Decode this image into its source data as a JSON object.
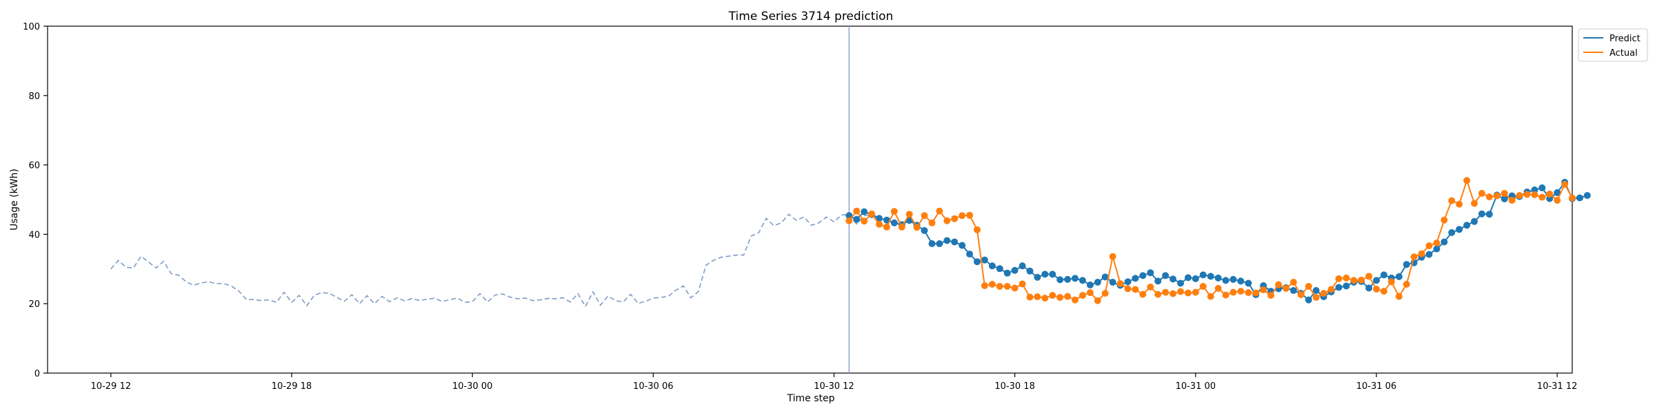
{
  "chart_data": {
    "type": "line",
    "title": "Time Series 3714 prediction",
    "xlabel": "Time step",
    "ylabel": "Usage (kWh)",
    "ylim": [
      0,
      100
    ],
    "yticks": [
      0,
      20,
      40,
      60,
      80,
      100
    ],
    "xticks": [
      "10-29 12",
      "10-29 18",
      "10-30 00",
      "10-30 06",
      "10-30 12",
      "10-30 18",
      "10-31 00",
      "10-31 06",
      "10-31 12"
    ],
    "xlim": [
      -2.1,
      48.5
    ],
    "grid": false,
    "legend_position": "outside-top-right",
    "prediction_start": 24.5,
    "colors": {
      "history": "#7e9cc4",
      "predict": "#1f77b4",
      "actual": "#ff7f0e",
      "divider": "#8c9fd1"
    },
    "history": {
      "x_start": 0,
      "x_step": 0.25,
      "values": [
        30,
        32.5,
        30.5,
        30.3,
        33.7,
        32,
        30.3,
        32.2,
        28.7,
        28.2,
        26.3,
        25.3,
        26,
        26.3,
        25.8,
        25.8,
        25.1,
        23.6,
        21.2,
        21.2,
        20.9,
        21.1,
        20.4,
        23.3,
        20.4,
        22.4,
        19.4,
        22.4,
        23.2,
        23,
        21.8,
        20.7,
        22.6,
        20,
        22.3,
        20,
        22.1,
        20.6,
        21.7,
        20.8,
        21.5,
        20.9,
        21.3,
        21.6,
        20.6,
        21.2,
        21.6,
        20.4,
        20.6,
        22.9,
        20.5,
        22.5,
        22.8,
        21.9,
        21.4,
        21.6,
        20.9,
        21.1,
        21.5,
        21.4,
        21.7,
        20.5,
        22.9,
        19.2,
        23.4,
        19.6,
        22.2,
        20.9,
        20.5,
        22.7,
        20.1,
        20.7,
        21.6,
        21.8,
        22.1,
        23.9,
        25.1,
        21.7,
        23.5,
        31.1,
        32.5,
        33.4,
        33.7,
        34,
        34,
        39.5,
        40.4,
        44.6,
        42.5,
        43.3,
        45.8,
        44,
        45,
        42.6,
        43.3,
        45,
        43.6,
        45.6,
        45.6,
        43,
        45.3,
        45.8,
        44.2
      ]
    },
    "series": [
      {
        "name": "Predict",
        "x_start": 24.5,
        "x_step": 0.25,
        "values": [
          45.4,
          44.3,
          46.5,
          45.7,
          44.6,
          44.1,
          43.3,
          42.8,
          44,
          42.6,
          41.1,
          37.3,
          37.3,
          38.2,
          37.8,
          36.8,
          34.3,
          32.1,
          32.6,
          30.9,
          30.1,
          28.8,
          29.6,
          30.9,
          29.4,
          27.6,
          28.5,
          28.5,
          26.9,
          27,
          27.3,
          26.7,
          25.4,
          26.2,
          27.7,
          26.2,
          25.3,
          26.3,
          27.3,
          28.1,
          28.9,
          26.5,
          28.1,
          27.1,
          25.9,
          27.5,
          27.2,
          28.3,
          27.9,
          27.4,
          26.7,
          27,
          26.5,
          25.9,
          22.6,
          25.2,
          23.6,
          24.3,
          24.6,
          23.8,
          23,
          21.1,
          23.8,
          22,
          23.4,
          24.7,
          25.1,
          26.2,
          26.4,
          24.5,
          26.7,
          28.3,
          27.4,
          27.8,
          31.3,
          31.8,
          33.4,
          34.2,
          35.8,
          37.8,
          40.5,
          41.4,
          42.6,
          43.7,
          45.9,
          45.8,
          51.3,
          50.2,
          51.1,
          50.9,
          52.2,
          52.8,
          53.4,
          50.3,
          52,
          55,
          50.3,
          50.5,
          51.2
        ]
      },
      {
        "name": "Actual",
        "x_start": 24.5,
        "x_step": 0.25,
        "values": [
          43.9,
          46.7,
          43.8,
          45.9,
          42.9,
          42.1,
          46.6,
          42.1,
          45.8,
          42,
          45.4,
          43.3,
          46.7,
          43.9,
          44.5,
          45.4,
          45.5,
          41.3,
          25.2,
          25.6,
          25,
          25,
          24.5,
          25.7,
          21.9,
          22,
          21.6,
          22.4,
          21.8,
          22.1,
          21.1,
          22.4,
          23.2,
          20.9,
          23,
          33.6,
          25.8,
          24.3,
          24.1,
          22.7,
          24.8,
          22.7,
          23.3,
          22.9,
          23.5,
          23.1,
          23.3,
          25,
          22.1,
          24.4,
          22.5,
          23.3,
          23.6,
          23.2,
          23.1,
          24,
          22.4,
          25.5,
          24.4,
          26.2,
          22.6,
          25,
          21.8,
          23,
          24.1,
          27.2,
          27.4,
          26.7,
          26.8,
          27.9,
          24.2,
          23.6,
          26.3,
          22.1,
          25.6,
          33.5,
          34.4,
          36.7,
          37.5,
          44.1,
          49.7,
          48.7,
          55.5,
          48.9,
          51.8,
          50.8,
          51.1,
          51.8,
          49.8,
          51.2,
          51.5,
          51.4,
          50.7,
          51.6,
          49.8,
          54.4,
          50.5
        ]
      }
    ]
  }
}
